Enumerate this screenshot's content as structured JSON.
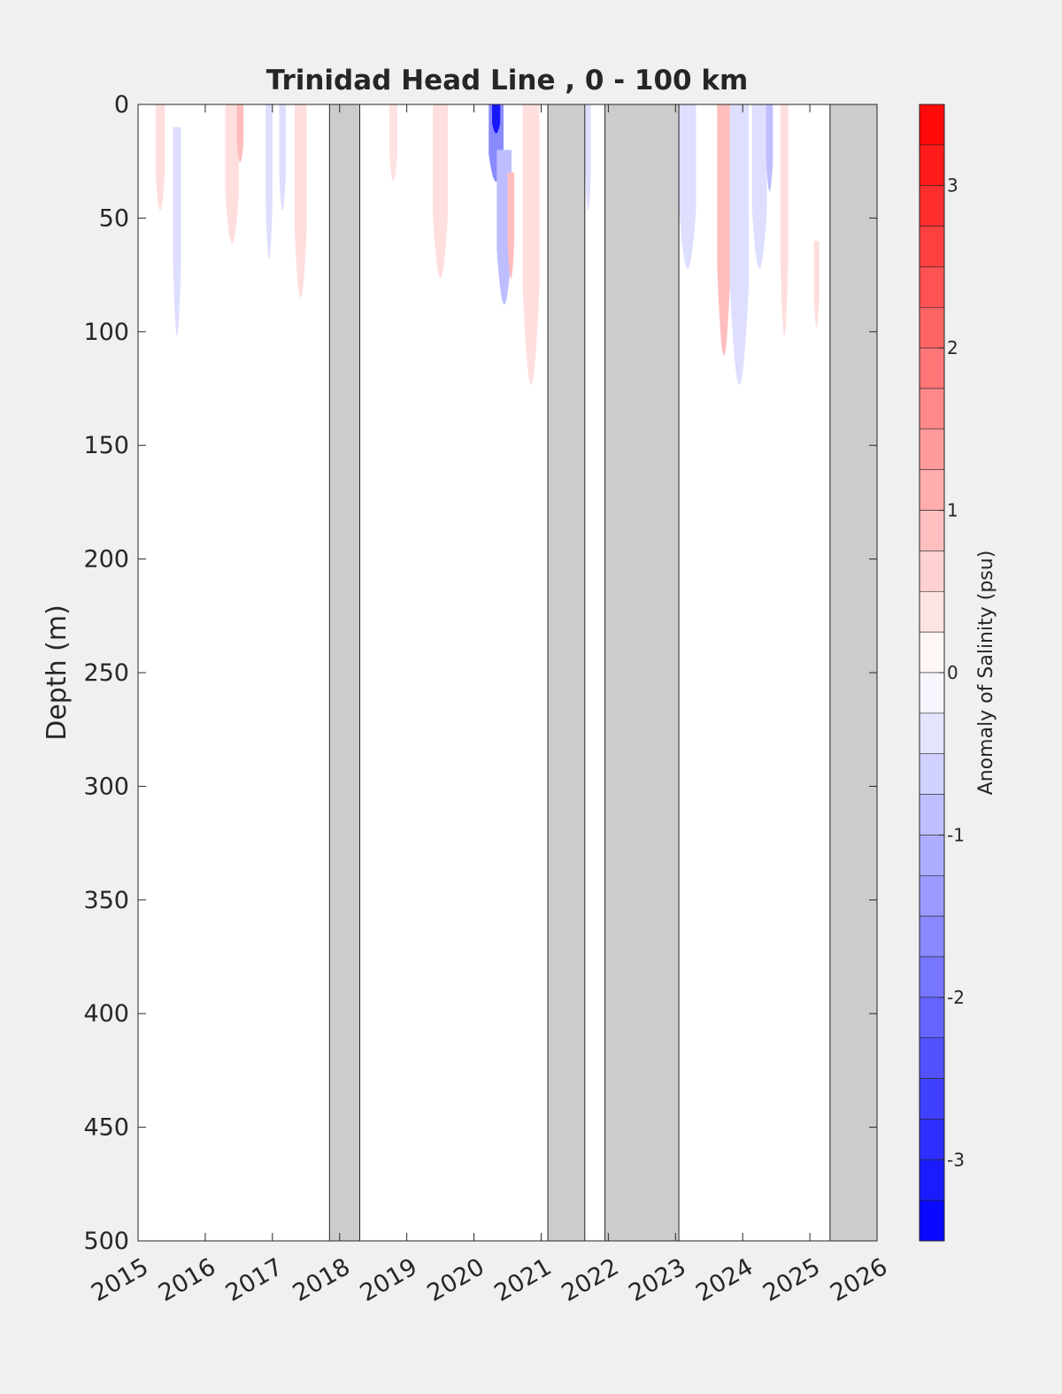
{
  "chart_data": {
    "type": "heatmap",
    "subtype": "depth-time contour section",
    "title": "Trinidad Head Line , 0 - 100 km",
    "xlabel": "",
    "ylabel": "Depth (m)",
    "x_ticks": [
      "2015",
      "2016",
      "2017",
      "2018",
      "2019",
      "2020",
      "2021",
      "2022",
      "2023",
      "2024",
      "2025",
      "2026"
    ],
    "xlim": [
      2015,
      2026
    ],
    "y_ticks": [
      0,
      50,
      100,
      150,
      200,
      250,
      300,
      350,
      400,
      450,
      500
    ],
    "ylim": [
      0,
      500
    ],
    "y_reversed": true,
    "colorbar": {
      "label": "Anomaly of Salinity (psu)",
      "range": [
        -3.5,
        3.5
      ],
      "levels": 28,
      "ticks": [
        3,
        2,
        1,
        0,
        -1,
        -2,
        -3
      ],
      "low_color": "#0000ff",
      "mid_color": "#ffffff",
      "high_color": "#ff0000"
    },
    "no_data_color": "#cccccc",
    "no_data_periods": [
      {
        "start": 2017.85,
        "end": 2018.3
      },
      {
        "start": 2021.1,
        "end": 2021.65
      },
      {
        "start": 2021.95,
        "end": 2023.05
      },
      {
        "start": 2025.3,
        "end": 2026.0
      }
    ],
    "anomaly_patches": [
      {
        "t": 2015.33,
        "w": 0.14,
        "d0": 0,
        "d1": 55,
        "value": 0.45
      },
      {
        "t": 2015.58,
        "w": 0.12,
        "d0": 10,
        "d1": 118,
        "value": -0.45
      },
      {
        "t": 2016.4,
        "w": 0.2,
        "d0": 0,
        "d1": 72,
        "value": 0.45
      },
      {
        "t": 2016.52,
        "w": 0.1,
        "d0": 0,
        "d1": 30,
        "value": 0.9
      },
      {
        "t": 2016.95,
        "w": 0.1,
        "d0": 0,
        "d1": 80,
        "value": -0.45
      },
      {
        "t": 2017.15,
        "w": 0.1,
        "d0": 0,
        "d1": 55,
        "value": -0.45
      },
      {
        "t": 2017.42,
        "w": 0.18,
        "d0": 0,
        "d1": 100,
        "value": 0.45
      },
      {
        "t": 2018.8,
        "w": 0.12,
        "d0": 0,
        "d1": 40,
        "value": 0.4
      },
      {
        "t": 2019.5,
        "w": 0.22,
        "d0": 0,
        "d1": 90,
        "value": 0.45
      },
      {
        "t": 2020.33,
        "w": 0.22,
        "d0": 0,
        "d1": 40,
        "value": -1.6
      },
      {
        "t": 2020.33,
        "w": 0.12,
        "d0": 0,
        "d1": 15,
        "value": -3.2
      },
      {
        "t": 2020.45,
        "w": 0.22,
        "d0": 20,
        "d1": 100,
        "value": -0.9
      },
      {
        "t": 2020.55,
        "w": 0.1,
        "d0": 30,
        "d1": 85,
        "value": 0.9
      },
      {
        "t": 2020.85,
        "w": 0.25,
        "d0": 0,
        "d1": 145,
        "value": 0.45
      },
      {
        "t": 2021.7,
        "w": 0.08,
        "d0": 0,
        "d1": 55,
        "value": -0.45
      },
      {
        "t": 2023.18,
        "w": 0.25,
        "d0": 0,
        "d1": 85,
        "value": -0.45
      },
      {
        "t": 2023.72,
        "w": 0.2,
        "d0": 0,
        "d1": 130,
        "value": 0.9
      },
      {
        "t": 2023.95,
        "w": 0.28,
        "d0": 0,
        "d1": 145,
        "value": -0.45
      },
      {
        "t": 2024.25,
        "w": 0.22,
        "d0": 0,
        "d1": 85,
        "value": -0.45
      },
      {
        "t": 2024.4,
        "w": 0.1,
        "d0": 0,
        "d1": 45,
        "value": -0.9
      },
      {
        "t": 2024.62,
        "w": 0.12,
        "d0": 0,
        "d1": 120,
        "value": 0.45
      },
      {
        "t": 2025.1,
        "w": 0.08,
        "d0": 60,
        "d1": 105,
        "value": 0.45
      }
    ]
  }
}
